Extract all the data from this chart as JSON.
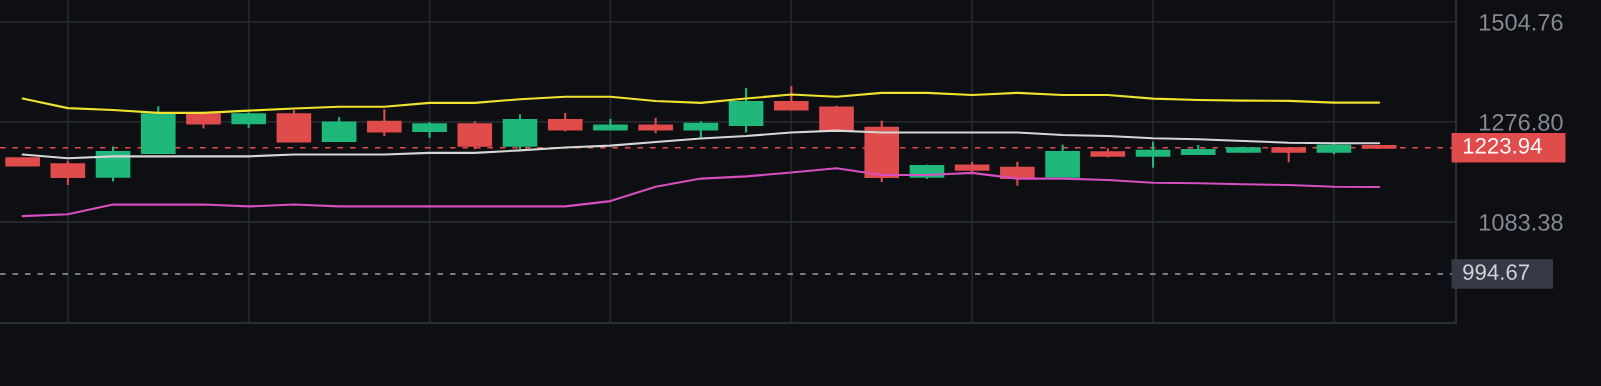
{
  "chart_data": {
    "type": "candlestick",
    "categories": [
      null,
      null,
      null,
      null,
      null,
      null,
      null,
      null,
      null,
      null,
      null,
      null,
      null,
      null,
      null,
      null,
      null,
      null,
      null,
      null,
      null,
      null,
      null,
      null,
      null,
      null,
      null,
      null,
      null,
      null,
      null
    ],
    "ohlc": [
      [
        1203.0,
        1203.0,
        1189.0,
        1189.0
      ],
      [
        1191.1,
        1198.2,
        1151.3,
        1166.4
      ],
      [
        1166.9,
        1226.6,
        1158.1,
        1215.3
      ],
      [
        1213.6,
        1310.0,
        1213.6,
        1293.0
      ],
      [
        1293.0,
        1298.4,
        1263.0,
        1273.4
      ],
      [
        1274.3,
        1296.9,
        1264.5,
        1293.0
      ],
      [
        1293.0,
        1302.2,
        1236.8,
        1236.8
      ],
      [
        1237.4,
        1287.1,
        1237.4,
        1275.8
      ],
      [
        1277.1,
        1303.7,
        1247.6,
        1257.2
      ],
      [
        1257.9,
        1276.6,
        1243.9,
        1272.0
      ],
      [
        1272.0,
        1278.1,
        1220.8,
        1228.1
      ],
      [
        1228.1,
        1293.0,
        1220.8,
        1281.0
      ],
      [
        1281.0,
        1296.0,
        1257.2,
        1261.0
      ],
      [
        1261.0,
        1283.3,
        1261.0,
        1269.1
      ],
      [
        1269.1,
        1285.4,
        1253.5,
        1261.0
      ],
      [
        1261.0,
        1278.1,
        1243.9,
        1272.8
      ],
      [
        1270.5,
        1350.4,
        1255.0,
        1319.2
      ],
      [
        1319.2,
        1354.4,
        1302.2,
        1303.1
      ],
      [
        1307.6,
        1311.5,
        1259.3,
        1259.3
      ],
      [
        1264.5,
        1279.5,
        1156.8,
        1166.4
      ],
      [
        1166.9,
        1190.5,
        1162.9,
        1187.6
      ],
      [
        1188.4,
        1196.0,
        1171.8,
        1180.7
      ],
      [
        1184.0,
        1196.0,
        1149.9,
        1164.8
      ],
      [
        1166.9,
        1230.2,
        1166.9,
        1215.3
      ],
      [
        1214.8,
        1222.8,
        1204.8,
        1208.0
      ],
      [
        1208.0,
        1236.1,
        1184.4,
        1218.0
      ],
      [
        1211.4,
        1229.5,
        1211.4,
        1219.4
      ],
      [
        1216.0,
        1226.0,
        1214.0,
        1222.8
      ],
      [
        1222.8,
        1223.0,
        1195.0,
        1216.0
      ],
      [
        1216.0,
        1232.9,
        1210.8,
        1228.1
      ],
      [
        1227.5,
        1227.5,
        1223.94,
        1223.94
      ]
    ],
    "colors": [
      "#e04b4b",
      "#e04b4b",
      "#1fb87a",
      "#1fb87a",
      "#e04b4b",
      "#1fb87a",
      "#e04b4b",
      "#1fb87a",
      "#e04b4b",
      "#1fb87a",
      "#e04b4b",
      "#1fb87a",
      "#e04b4b",
      "#1fb87a",
      "#e04b4b",
      "#1fb87a",
      "#1fb87a",
      "#e04b4b",
      "#e04b4b",
      "#e04b4b",
      "#1fb87a",
      "#e04b4b",
      "#e04b4b",
      "#1fb87a",
      "#e04b4b",
      "#1fb87a",
      "#1fb87a",
      "#1fb87a",
      "#e04b4b",
      "#1fb87a",
      "#e04b4b"
    ],
    "series": [
      {
        "type": "line",
        "color": "#f2e230",
        "values": [
          1326.9,
          1306.1,
          1302.2,
          1296.0,
          1296.0,
          1300.7,
          1305.2,
          1309.1,
          1309.1,
          1317.5,
          1317.5,
          1325.3,
          1330.8,
          1330.8,
          1321.4,
          1317.5,
          1326.9,
          1335.6,
          1330.8,
          1339.3,
          1339.3,
          1334.7,
          1339.3,
          1334.7,
          1334.7,
          1326.6,
          1323.8,
          1322.3,
          1321.8,
          1318.0,
          1318.0
        ]
      },
      {
        "type": "line",
        "color": "#d6d6d6",
        "values": [
          1210.2,
          1203.0,
          1206.7,
          1206.7,
          1206.7,
          1206.7,
          1210.2,
          1210.2,
          1210.2,
          1213.6,
          1213.6,
          1218.6,
          1224.4,
          1228.1,
          1235.3,
          1242.5,
          1247.6,
          1255.0,
          1258.7,
          1255.0,
          1255.0,
          1255.0,
          1255.0,
          1249.8,
          1247.8,
          1243.1,
          1241.0,
          1237.6,
          1234.1,
          1232.9,
          1232.9
        ]
      },
      {
        "type": "line",
        "color": "#d64fc0",
        "values": [
          1093.9,
          1097.1,
          1114.8,
          1114.8,
          1114.8,
          1111.5,
          1114.8,
          1111.5,
          1111.5,
          1111.5,
          1111.5,
          1111.5,
          1111.5,
          1121.2,
          1147.8,
          1163.4,
          1167.6,
          1175.1,
          1183.5,
          1170.3,
          1170.3,
          1174.4,
          1163.4,
          1163.4,
          1160.7,
          1155.6,
          1154.5,
          1152.6,
          1151.3,
          1148.0,
          1147.5
        ]
      }
    ],
    "log": true,
    "ylim": [
      917.8,
      1559.9
    ],
    "yticks": [
      1083.38,
      {
        "value": 1276.8,
        "label": "1276.80"
      },
      1504.76
    ],
    "tick_labels": "y",
    "grid": true,
    "ref_lines": [
      {
        "axis": "y",
        "value": 1223.94,
        "label": "1223.94",
        "color": "#e04b4b",
        "line_style": "dashed"
      },
      {
        "axis": "y",
        "value": 994.67,
        "label": "994.67",
        "color": "#9aa0a6",
        "line_style": "dashed"
      }
    ]
  }
}
